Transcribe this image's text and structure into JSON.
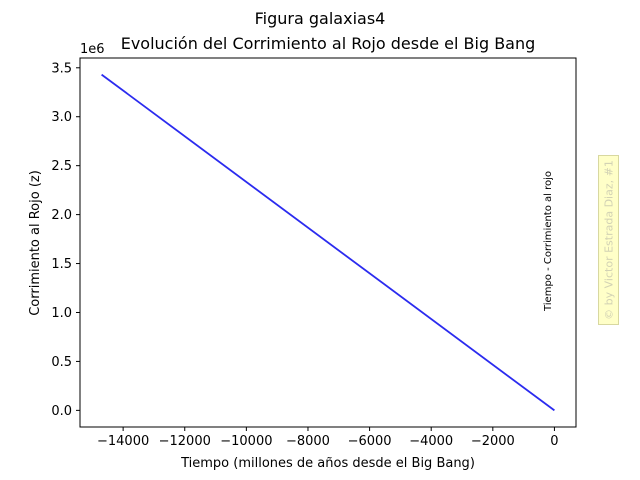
{
  "chart_data": {
    "type": "line",
    "suptitle": "Figura galaxias4",
    "title": "Evolución del Corrimiento al Rojo desde el Big Bang",
    "xlabel": "Tiempo (millones de años desde el Big Bang)",
    "ylabel": "Corrimiento al Rojo (z)",
    "y_offset_label": "1e6",
    "annotation": "Tiempo - Corrimiento al rojo",
    "watermark": "© by Victor Estrada Diaz, #1",
    "xlim": [
      -15400,
      700
    ],
    "ylim": [
      -170000,
      3600000
    ],
    "x_ticks": [
      -14000,
      -12000,
      -10000,
      -8000,
      -6000,
      -4000,
      -2000,
      0
    ],
    "x_tick_labels": [
      "−14000",
      "−12000",
      "−10000",
      "−8000",
      "−6000",
      "−4000",
      "−2000",
      "0"
    ],
    "y_ticks": [
      0,
      500000,
      1000000,
      1500000,
      2000000,
      2500000,
      3000000,
      3500000
    ],
    "y_tick_labels": [
      "0.0",
      "0.5",
      "1.0",
      "1.5",
      "2.0",
      "2.5",
      "3.0",
      "3.5"
    ],
    "grid": false,
    "series": [
      {
        "color": "#2b2bef",
        "x": [
          -14700,
          0
        ],
        "y": [
          3430000,
          0
        ]
      }
    ]
  }
}
